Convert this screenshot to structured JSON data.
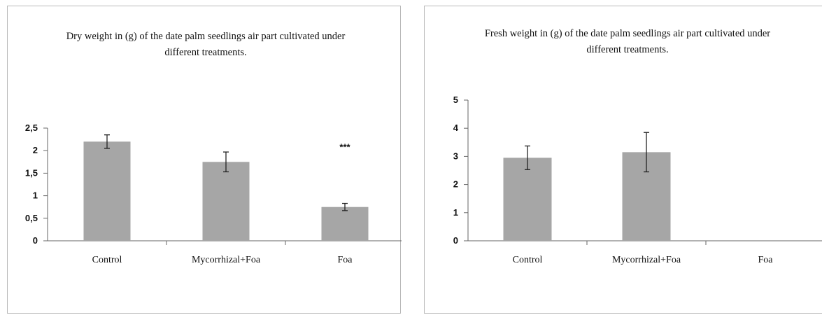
{
  "chart_data": [
    {
      "type": "bar",
      "title": "Dry weight in (g) of the date palm seedlings air part cultivated under different treatments.",
      "title_lines": [
        "Dry weight in (g) of the date palm seedlings air part cultivated under",
        "different treatments."
      ],
      "categories": [
        "Control",
        "Mycorrhizal+Foa",
        "Foa"
      ],
      "values": [
        2.2,
        1.75,
        0.75
      ],
      "errors": [
        0.15,
        0.22,
        0.08
      ],
      "annotations": [
        {
          "category": "Foa",
          "text": "***"
        }
      ],
      "ylim": [
        0,
        2.5
      ],
      "yticks": [
        "0",
        "0,5",
        "1",
        "1,5",
        "2",
        "2,5"
      ],
      "xlabel": "",
      "ylabel": "",
      "grid": false,
      "bar_color": "#a6a6a6"
    },
    {
      "type": "bar",
      "title": "Fresh weight in (g) of the date palm seedlings air part cultivated under different treatments.",
      "title_lines": [
        "Fresh weight in (g) of the date palm seedlings air part cultivated under",
        "different treatments."
      ],
      "categories": [
        "Control",
        "Mycorrhizal+Foa",
        "Foa"
      ],
      "values": [
        2.95,
        3.15,
        null
      ],
      "errors": [
        0.42,
        0.7,
        null
      ],
      "annotations": [],
      "ylim": [
        0,
        5
      ],
      "yticks": [
        "0",
        "1",
        "2",
        "3",
        "4",
        "5"
      ],
      "xlabel": "",
      "ylabel": "",
      "grid": false,
      "bar_color": "#a6a6a6"
    }
  ]
}
